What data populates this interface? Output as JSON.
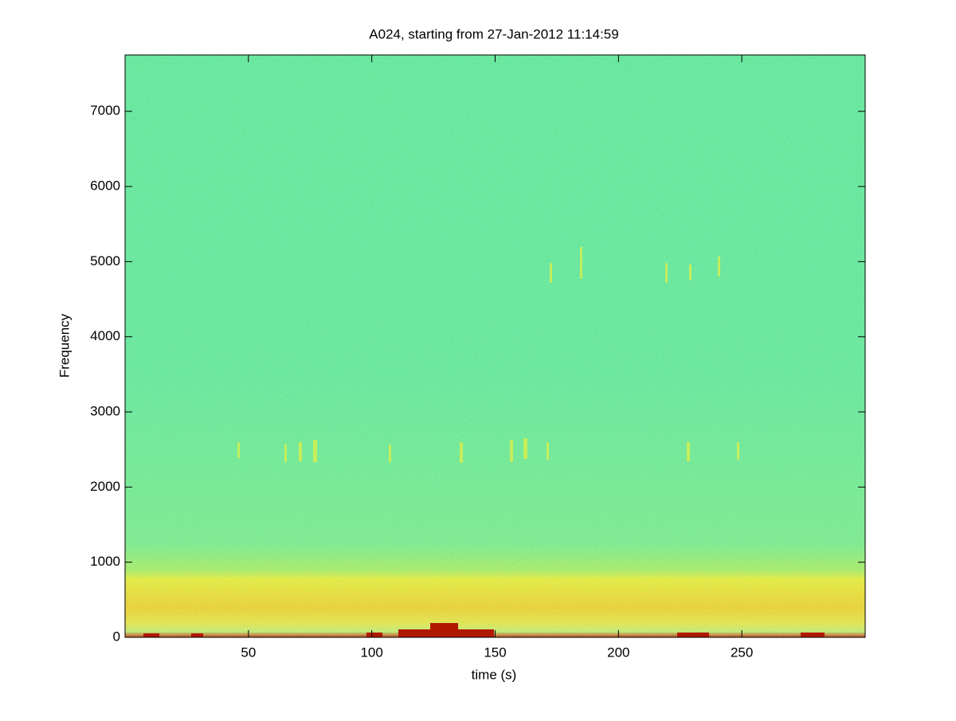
{
  "chart_data": {
    "type": "spectrogram",
    "title": "A024, starting from 27-Jan-2012 11:14:59",
    "x_label": "time (s)",
    "y_label": "Frequency",
    "xlim": [
      0,
      300
    ],
    "xticks": [
      50,
      100,
      150,
      200,
      250
    ],
    "ylim": [
      0,
      7750
    ],
    "yticks": [
      0,
      1000,
      2000,
      3000,
      4000,
      5000,
      6000,
      7000
    ]
  }
}
